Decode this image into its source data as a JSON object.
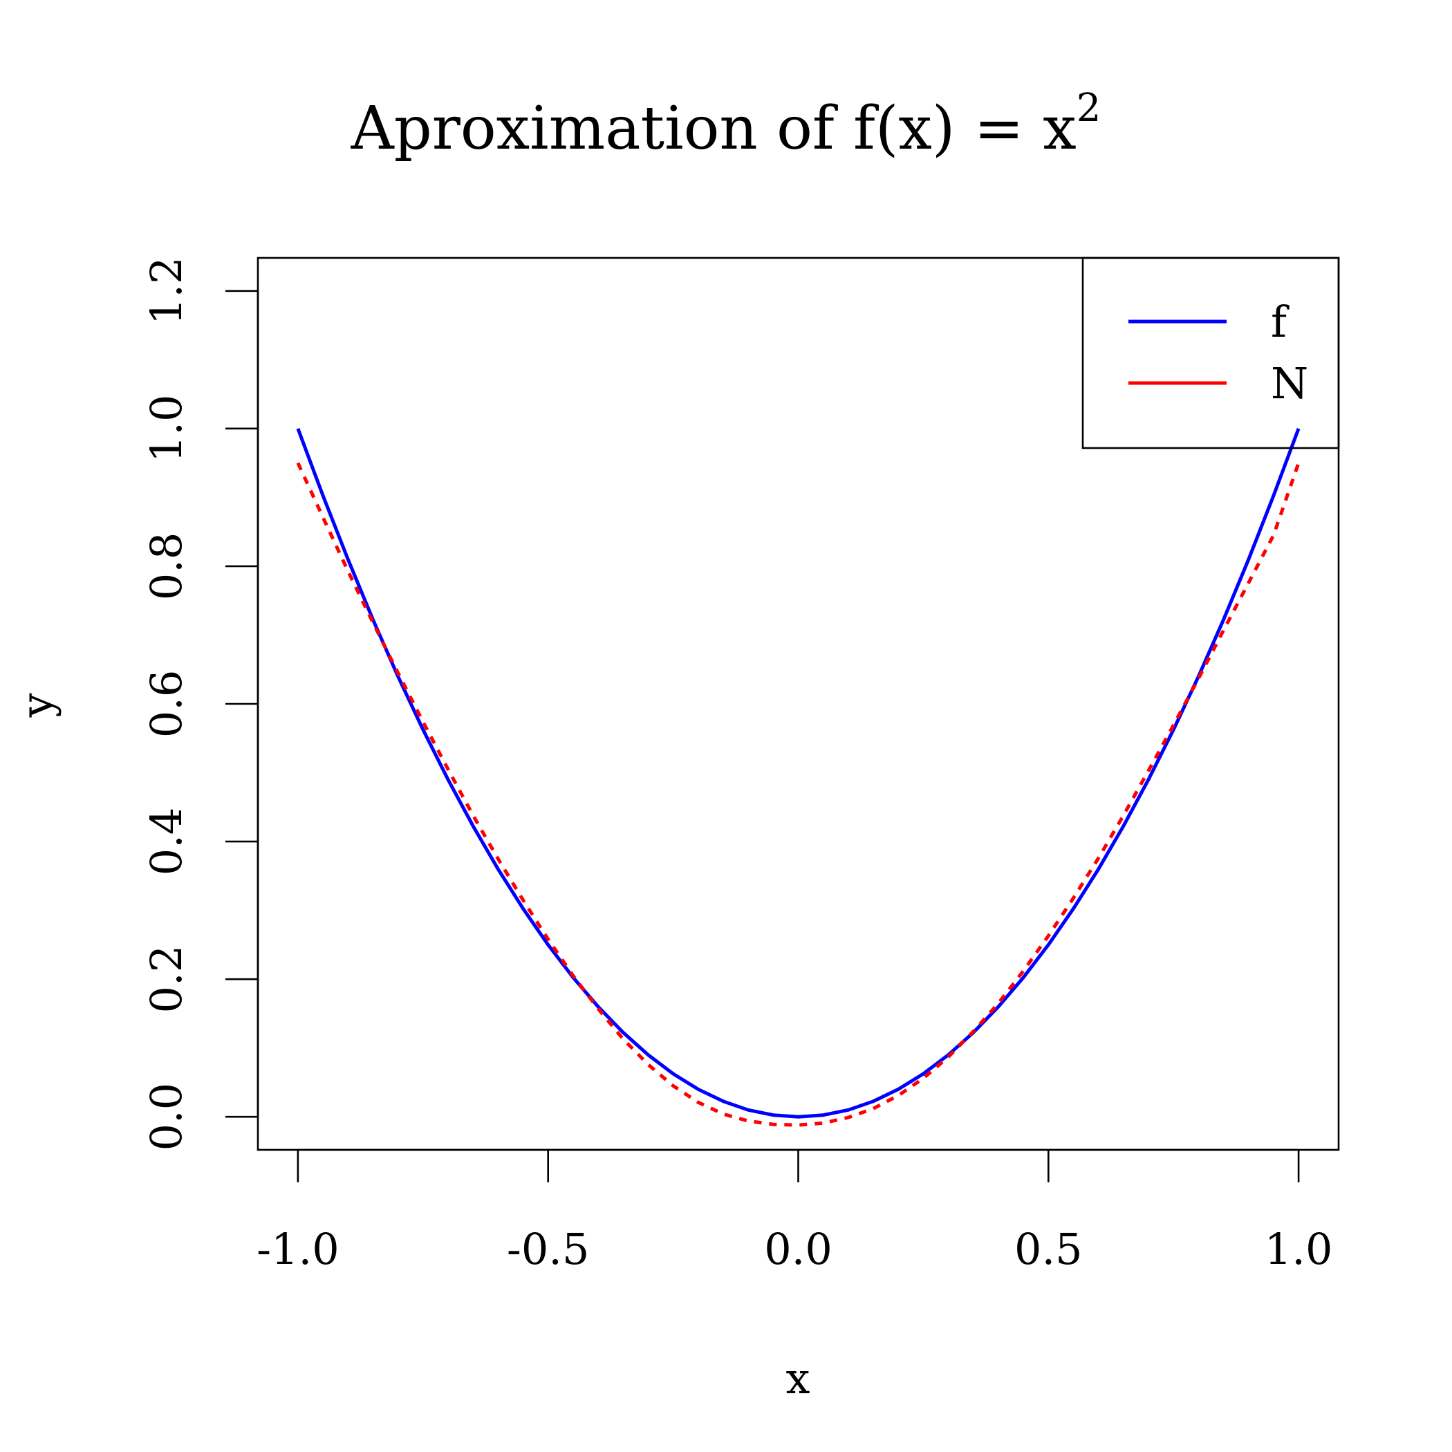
{
  "chart_data": {
    "type": "line",
    "title": {
      "main": "Aproximation of f(x) = x",
      "superscript": "2"
    },
    "xlabel": "x",
    "ylabel": "y",
    "xlim": [
      -1.08,
      1.08
    ],
    "ylim": [
      -0.048,
      1.248
    ],
    "xticks": [
      -1.0,
      -0.5,
      0.0,
      0.5,
      1.0
    ],
    "xtick_labels": [
      "-1.0",
      "-0.5",
      "0.0",
      "0.5",
      "1.0"
    ],
    "yticks": [
      0.0,
      0.2,
      0.4,
      0.6,
      0.8,
      1.0,
      1.2
    ],
    "ytick_labels": [
      "0.0",
      "0.2",
      "0.4",
      "0.6",
      "0.8",
      "1.0",
      "1.2"
    ],
    "grid": false,
    "legend_position": "top-right",
    "series": [
      {
        "name": "f",
        "color": "#0000ff",
        "style": "solid",
        "x": [
          -1.0,
          -0.95,
          -0.9,
          -0.85,
          -0.8,
          -0.75,
          -0.7,
          -0.65,
          -0.6,
          -0.55,
          -0.5,
          -0.45,
          -0.4,
          -0.35,
          -0.3,
          -0.25,
          -0.2,
          -0.15,
          -0.1,
          -0.05,
          0.0,
          0.05,
          0.1,
          0.15,
          0.2,
          0.25,
          0.3,
          0.35,
          0.4,
          0.45,
          0.5,
          0.55,
          0.6,
          0.65,
          0.7,
          0.75,
          0.8,
          0.85,
          0.9,
          0.95,
          1.0
        ],
        "y": [
          1.0,
          0.9025,
          0.81,
          0.7225,
          0.64,
          0.5625,
          0.49,
          0.4225,
          0.36,
          0.3025,
          0.25,
          0.2025,
          0.16,
          0.1225,
          0.09,
          0.0625,
          0.04,
          0.0225,
          0.01,
          0.0025,
          0.0,
          0.0025,
          0.01,
          0.0225,
          0.04,
          0.0625,
          0.09,
          0.1225,
          0.16,
          0.2025,
          0.25,
          0.3025,
          0.36,
          0.4225,
          0.49,
          0.5625,
          0.64,
          0.7225,
          0.81,
          0.9025,
          1.0
        ]
      },
      {
        "name": "N",
        "color": "#ff0000",
        "style": "dashed",
        "x": [
          -1.0,
          -0.95,
          -0.9,
          -0.85,
          -0.8,
          -0.75,
          -0.7,
          -0.65,
          -0.6,
          -0.55,
          -0.5,
          -0.45,
          -0.4,
          -0.35,
          -0.3,
          -0.25,
          -0.2,
          -0.15,
          -0.1,
          -0.05,
          0.0,
          0.05,
          0.1,
          0.15,
          0.2,
          0.25,
          0.3,
          0.35,
          0.4,
          0.45,
          0.5,
          0.55,
          0.6,
          0.65,
          0.7,
          0.75,
          0.8,
          0.85,
          0.9,
          0.95,
          1.0
        ],
        "y": [
          0.95,
          0.871,
          0.793,
          0.718,
          0.645,
          0.574,
          0.505,
          0.438,
          0.375,
          0.315,
          0.258,
          0.205,
          0.157,
          0.113,
          0.076,
          0.045,
          0.021,
          0.004,
          -0.006,
          -0.011,
          -0.012,
          -0.009,
          -0.001,
          0.012,
          0.031,
          0.056,
          0.087,
          0.124,
          0.165,
          0.212,
          0.263,
          0.318,
          0.376,
          0.438,
          0.503,
          0.569,
          0.637,
          0.707,
          0.776,
          0.845,
          0.95
        ]
      }
    ]
  }
}
